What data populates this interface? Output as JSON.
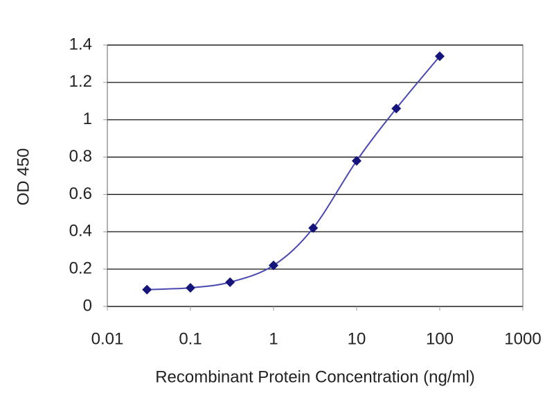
{
  "chart_data": {
    "type": "line",
    "x_label": "Recombinant Protein Concentration (ng/ml)",
    "y_label": "OD 450",
    "x": [
      0.03,
      0.1,
      0.3,
      1,
      3,
      10,
      30,
      100
    ],
    "values": [
      0.09,
      0.1,
      0.13,
      0.22,
      0.42,
      0.78,
      1.06,
      1.34
    ],
    "color": "#14147a",
    "line_color": "#4848b0",
    "xscale": "log",
    "xlim": [
      0.01,
      1000
    ],
    "xticks": [
      0.01,
      0.1,
      1,
      10,
      100,
      1000
    ],
    "ylim": [
      0,
      1.4
    ],
    "yticks": [
      0,
      0.2,
      0.4,
      0.6,
      0.8,
      1,
      1.2,
      1.4
    ],
    "grid": true
  }
}
